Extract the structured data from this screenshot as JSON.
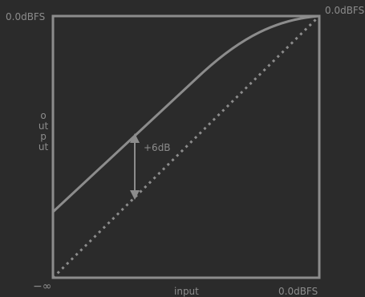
{
  "labels": {
    "y_top": "0.0dBFS",
    "x_right": "0.0dBFS",
    "top_right": "0.0dBFS",
    "origin": "−∞",
    "x_axis": "input",
    "y_axis": "output",
    "gain_delta": "+6dB"
  },
  "colors": {
    "background": "#2b2b2b",
    "stroke": "#8c8c8c",
    "text": "#8c8c8c"
  }
}
